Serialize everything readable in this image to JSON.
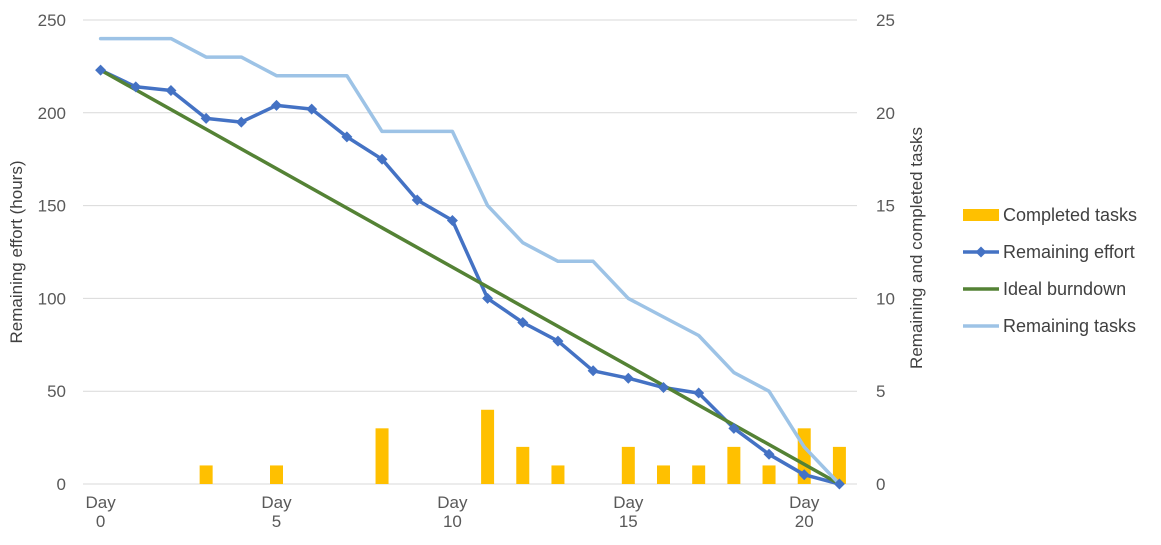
{
  "chart_data": {
    "type": "combo",
    "categories": [
      [
        "Day",
        "0"
      ],
      [
        "",
        ""
      ],
      [
        "",
        ""
      ],
      [
        "",
        ""
      ],
      [
        "",
        ""
      ],
      [
        "Day",
        "5"
      ],
      [
        "",
        ""
      ],
      [
        "",
        ""
      ],
      [
        "",
        ""
      ],
      [
        "",
        ""
      ],
      [
        "Day",
        "10"
      ],
      [
        "",
        ""
      ],
      [
        "",
        ""
      ],
      [
        "",
        ""
      ],
      [
        "",
        ""
      ],
      [
        "Day",
        "15"
      ],
      [
        "",
        ""
      ],
      [
        "",
        ""
      ],
      [
        "",
        ""
      ],
      [
        "",
        ""
      ],
      [
        "Day",
        "20"
      ],
      [
        "",
        ""
      ]
    ],
    "x": [
      0,
      1,
      2,
      3,
      4,
      5,
      6,
      7,
      8,
      9,
      10,
      11,
      12,
      13,
      14,
      15,
      16,
      17,
      18,
      19,
      20,
      21
    ],
    "ylabel": "Remaining effort (hours)",
    "y2label": "Remaining and completed tasks",
    "ylim": [
      0,
      250
    ],
    "y2lim": [
      0,
      25
    ],
    "yticks": [
      0,
      50,
      100,
      150,
      200,
      250
    ],
    "y2ticks": [
      0,
      5,
      10,
      15,
      20,
      25
    ],
    "grid": true,
    "legend_position": "right",
    "series": [
      {
        "name": "Completed tasks",
        "kind": "bar",
        "axis": "secondary",
        "color": "#FFC000",
        "values": [
          0,
          0,
          0,
          1,
          0,
          1,
          0,
          0,
          3,
          0,
          0,
          4,
          2,
          1,
          0,
          2,
          1,
          1,
          2,
          1,
          3,
          2
        ]
      },
      {
        "name": "Remaining effort",
        "kind": "line-marker",
        "axis": "primary",
        "color": "#4472C4",
        "values": [
          223,
          214,
          212,
          197,
          195,
          204,
          202,
          187,
          175,
          153,
          142,
          100,
          87,
          77,
          61,
          57,
          52,
          49,
          30,
          16,
          5,
          0
        ]
      },
      {
        "name": "Ideal burndown",
        "kind": "line",
        "axis": "primary",
        "color": "#548235",
        "values": [
          223,
          0
        ],
        "x": [
          0,
          21
        ]
      },
      {
        "name": "Remaining tasks",
        "kind": "line",
        "axis": "secondary",
        "color": "#9DC3E6",
        "values": [
          24,
          24,
          24,
          23,
          23,
          22,
          22,
          22,
          19,
          19,
          19,
          15,
          13,
          12,
          12,
          10,
          9,
          8,
          6,
          5,
          2,
          0
        ]
      }
    ]
  }
}
